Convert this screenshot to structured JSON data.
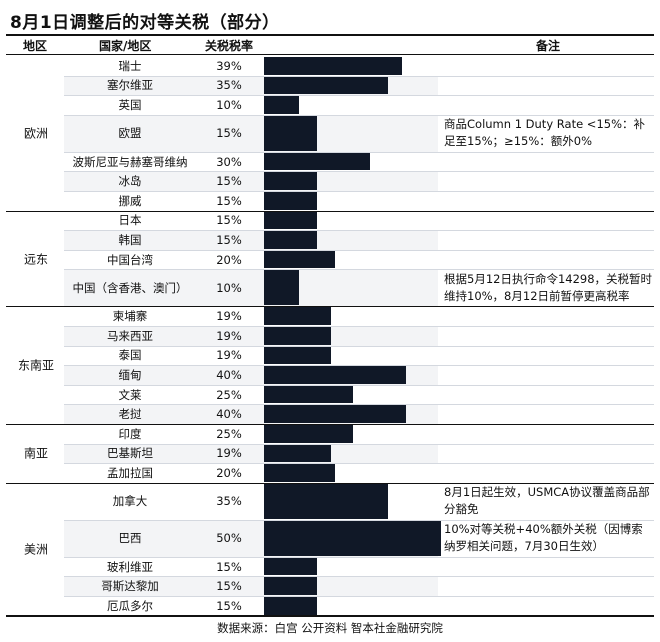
{
  "title": "8月1日调整后的对等关税（部分）",
  "headers": {
    "region": "地区",
    "country": "国家/地区",
    "rate": "关税税率",
    "note": "备注"
  },
  "chart_data": {
    "type": "bar",
    "orientation": "horizontal",
    "title": "8月1日调整后的对等关税（部分）",
    "unit": "%",
    "xlim": [
      0,
      50
    ],
    "groups": [
      {
        "region": "欧洲",
        "rows": [
          {
            "name": "瑞士",
            "value": 39,
            "label": "39%"
          },
          {
            "name": "塞尔维亚",
            "value": 35,
            "label": "35%"
          },
          {
            "name": "英国",
            "value": 10,
            "label": "10%"
          },
          {
            "name": "欧盟",
            "value": 15,
            "label": "15%",
            "note": "商品Column 1 Duty Rate <15%：补足至15%；≥15%：额外0%"
          },
          {
            "name": "波斯尼亚与赫塞哥维纳",
            "value": 30,
            "label": "30%"
          },
          {
            "name": "冰岛",
            "value": 15,
            "label": "15%"
          },
          {
            "name": "挪威",
            "value": 15,
            "label": "15%"
          }
        ]
      },
      {
        "region": "远东",
        "rows": [
          {
            "name": "日本",
            "value": 15,
            "label": "15%"
          },
          {
            "name": "韩国",
            "value": 15,
            "label": "15%"
          },
          {
            "name": "中国台湾",
            "value": 20,
            "label": "20%"
          },
          {
            "name": "中国（含香港、澳门）",
            "value": 10,
            "label": "10%",
            "note": "根据5月12日执行命令14298，关税暂时维持10%，8月12日前暂停更高税率"
          }
        ]
      },
      {
        "region": "东南亚",
        "rows": [
          {
            "name": "柬埔寨",
            "value": 19,
            "label": "19%"
          },
          {
            "name": "马来西亚",
            "value": 19,
            "label": "19%"
          },
          {
            "name": "泰国",
            "value": 19,
            "label": "19%"
          },
          {
            "name": "缅甸",
            "value": 40,
            "label": "40%"
          },
          {
            "name": "文莱",
            "value": 25,
            "label": "25%"
          },
          {
            "name": "老挝",
            "value": 40,
            "label": "40%"
          }
        ]
      },
      {
        "region": "南亚",
        "rows": [
          {
            "name": "印度",
            "value": 25,
            "label": "25%"
          },
          {
            "name": "巴基斯坦",
            "value": 19,
            "label": "19%"
          },
          {
            "name": "孟加拉国",
            "value": 20,
            "label": "20%"
          }
        ]
      },
      {
        "region": "美洲",
        "rows": [
          {
            "name": "加拿大",
            "value": 35,
            "label": "35%",
            "note": "8月1日起生效，USMCA协议覆盖商品部分豁免"
          },
          {
            "name": "巴西",
            "value": 50,
            "label": "50%",
            "note": "10%对等关税+40%额外关税（因博索纳罗相关问题，7月30日生效）"
          },
          {
            "name": "玻利维亚",
            "value": 15,
            "label": "15%"
          },
          {
            "name": "哥斯达黎加",
            "value": 15,
            "label": "15%"
          },
          {
            "name": "厄瓜多尔",
            "value": 15,
            "label": "15%"
          }
        ]
      }
    ]
  },
  "source": "数据来源：白宫 公开资料 智本社金融研究院"
}
